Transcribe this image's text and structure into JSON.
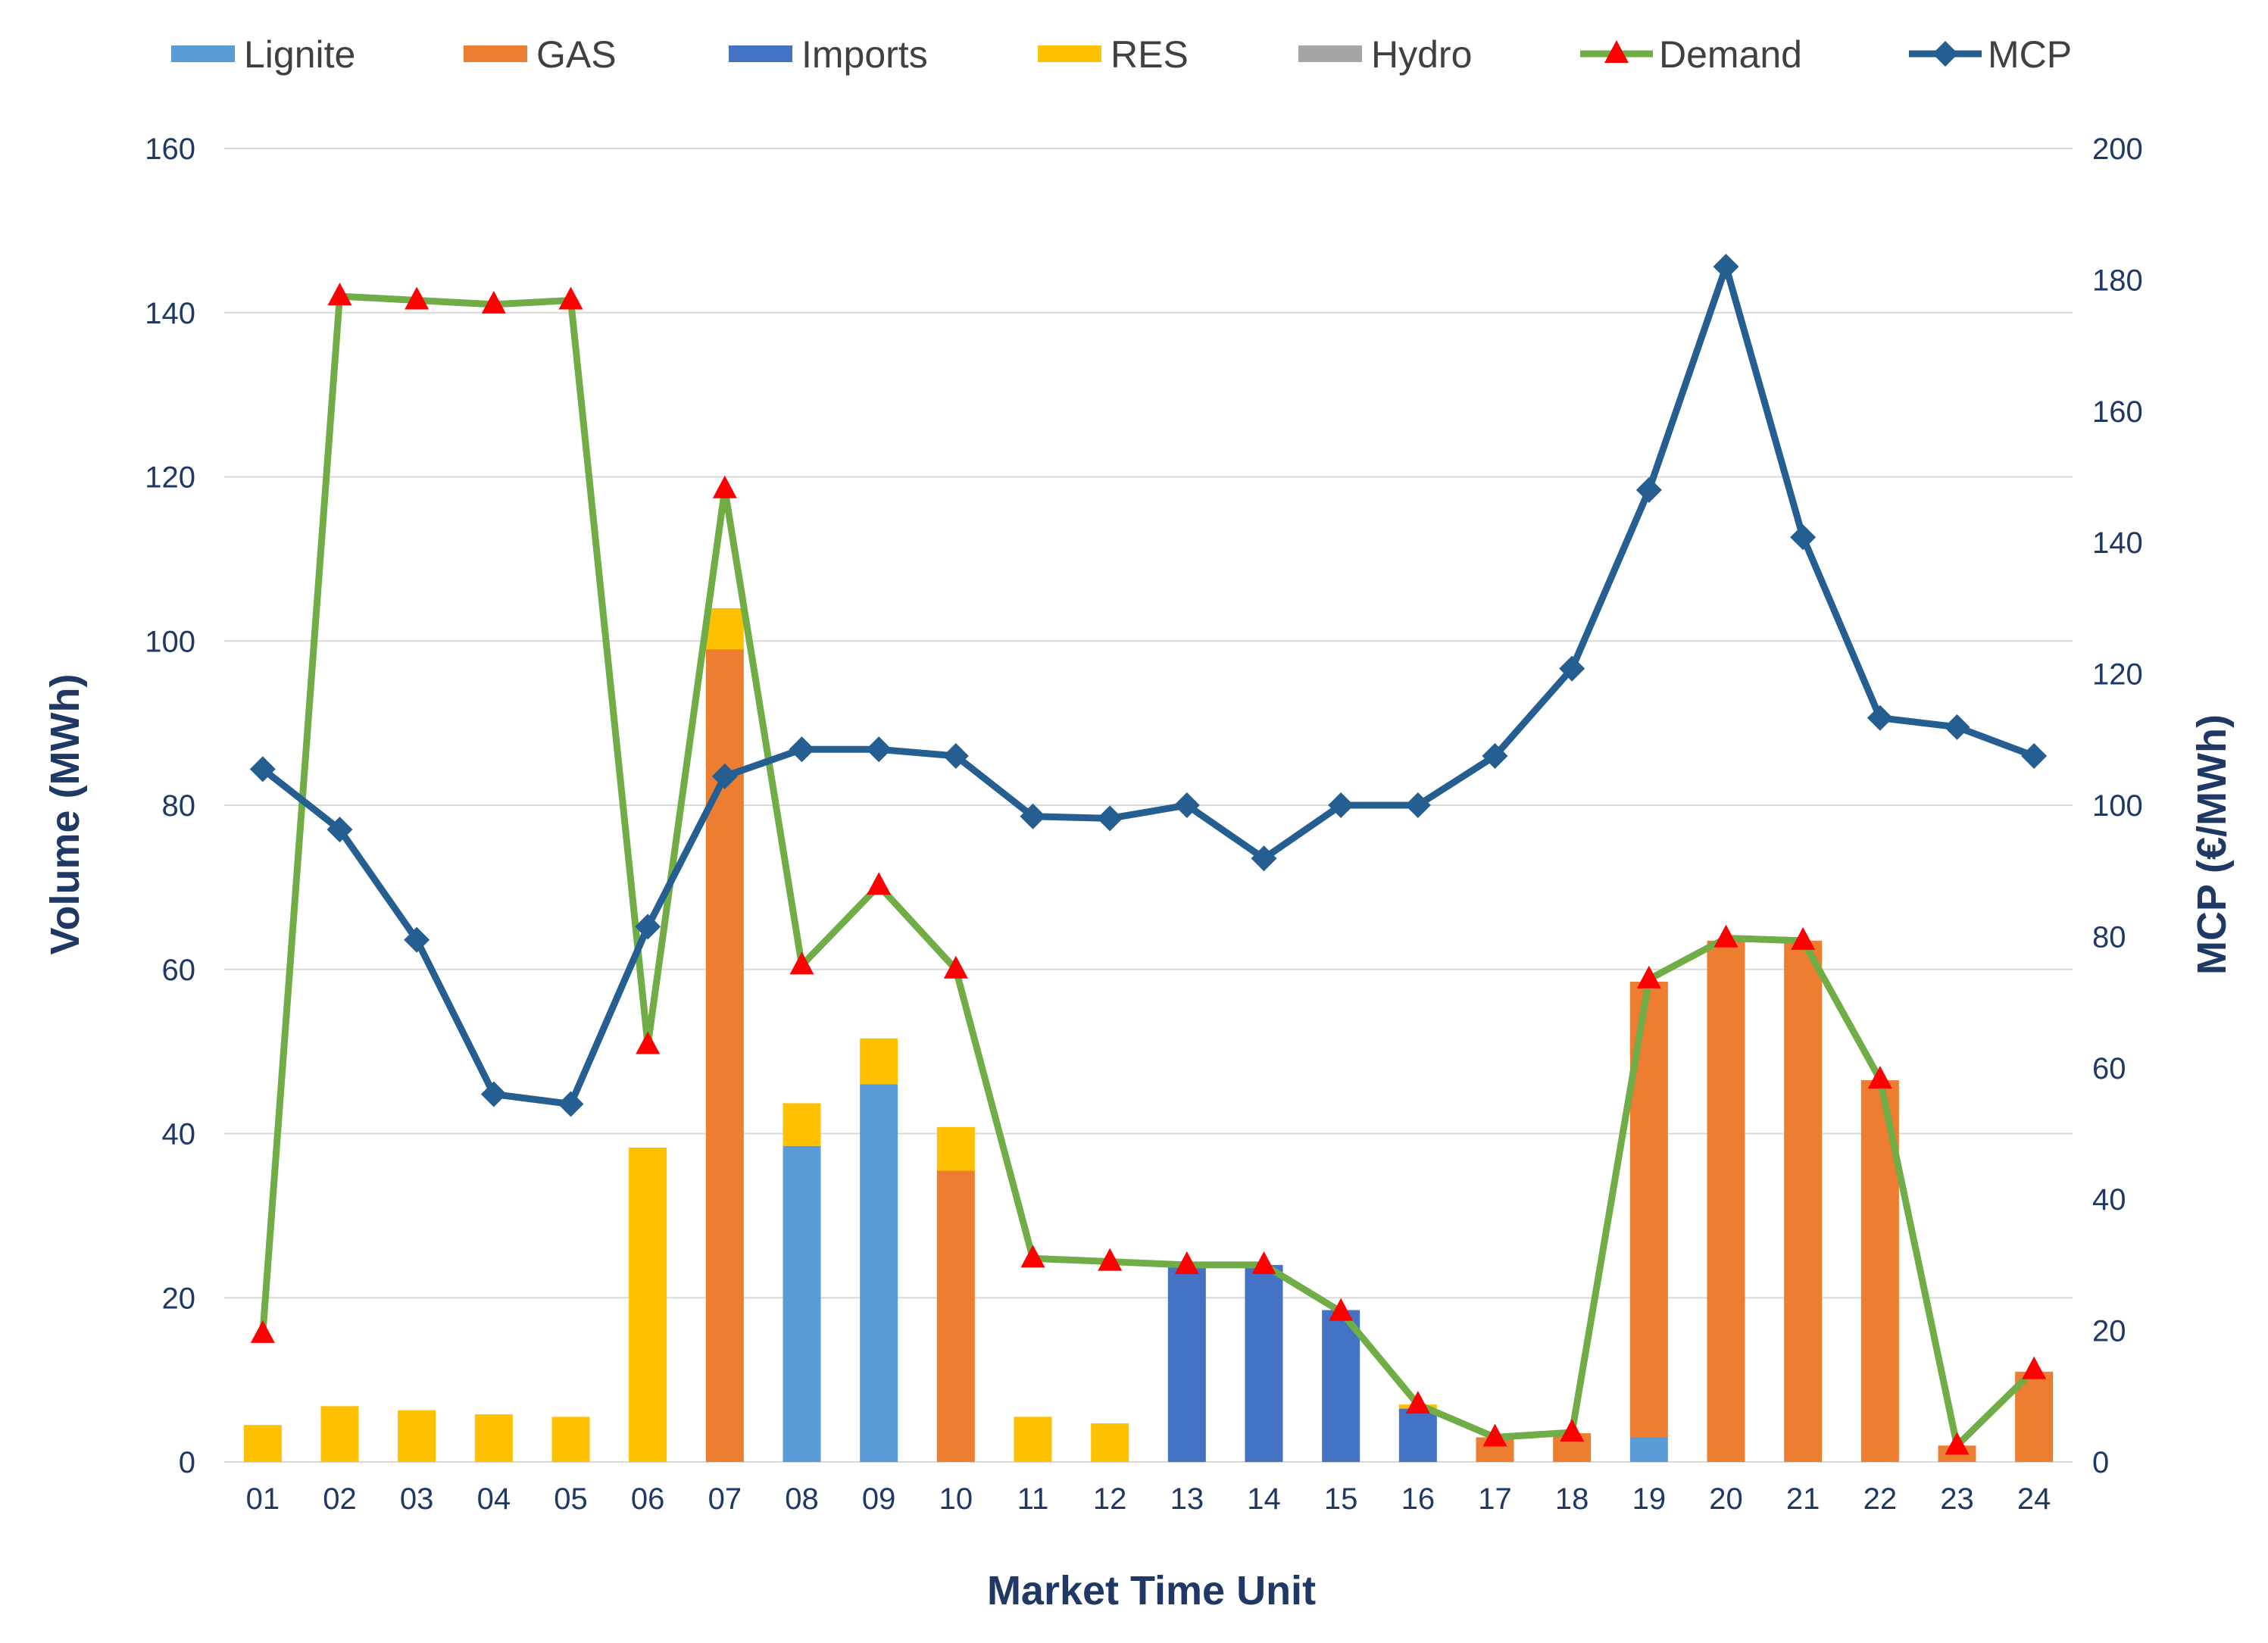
{
  "chart_data": {
    "type": "bar",
    "stacked": true,
    "title": "",
    "xlabel": "Market Time Unit",
    "ylabel_left": "Volume (MWh)",
    "ylabel_right": "MCP (€/MWh)",
    "ylim_left": [
      0,
      160
    ],
    "ylim_right": [
      0,
      200
    ],
    "yticks_left": [
      "0",
      "20",
      "40",
      "60",
      "80",
      "100",
      "120",
      "140",
      "160"
    ],
    "yticks_right": [
      "0",
      "20",
      "40",
      "60",
      "80",
      "100",
      "120",
      "140",
      "160",
      "180",
      "200"
    ],
    "grid": true,
    "legend_position": "top",
    "categories": [
      "01",
      "02",
      "03",
      "04",
      "05",
      "06",
      "07",
      "08",
      "09",
      "10",
      "11",
      "12",
      "13",
      "14",
      "15",
      "16",
      "17",
      "18",
      "19",
      "20",
      "21",
      "22",
      "23",
      "24"
    ],
    "bar_series": [
      {
        "name": "Lignite",
        "color": "#5b9bd5",
        "values": [
          0,
          0,
          0,
          0,
          0,
          0,
          0,
          38.5,
          46,
          0,
          0,
          0,
          0,
          0,
          0,
          0,
          0,
          0,
          3,
          0,
          0,
          0,
          0,
          0
        ]
      },
      {
        "name": "GAS",
        "color": "#ed7d31",
        "values": [
          0,
          0,
          0,
          0,
          0,
          0,
          99,
          0,
          0,
          35.5,
          0,
          0,
          0,
          0,
          0,
          0,
          3,
          3.5,
          55.5,
          63.5,
          63.5,
          46.5,
          2,
          11
        ]
      },
      {
        "name": "Imports",
        "color": "#4472c4",
        "values": [
          0,
          0,
          0,
          0,
          0,
          0,
          0,
          0,
          0,
          0,
          0,
          0,
          24,
          24,
          18.5,
          6.5,
          0,
          0,
          0,
          0,
          0,
          0,
          0,
          0
        ]
      },
      {
        "name": "RES",
        "color": "#ffc000",
        "values": [
          4.5,
          6.8,
          6.3,
          5.8,
          5.5,
          38.3,
          5,
          5.2,
          5.6,
          5.3,
          5.5,
          4.7,
          0,
          0,
          0,
          0.5,
          0,
          0,
          0,
          0,
          0,
          0,
          0,
          0
        ]
      },
      {
        "name": "Hydro",
        "color": "#a5a5a5",
        "values": [
          0,
          0,
          0,
          0,
          0,
          0,
          0,
          0,
          0,
          0,
          0,
          0,
          0,
          0,
          0,
          0,
          0,
          0,
          0,
          0,
          0,
          0,
          0,
          0
        ]
      }
    ],
    "line_series": [
      {
        "name": "Demand",
        "color": "#70ad47",
        "marker_color": "#ff0000",
        "marker": "triangle",
        "axis": "left",
        "values": [
          15.6,
          142,
          141.5,
          141,
          141.5,
          50.8,
          118.5,
          60.5,
          70.2,
          60,
          24.8,
          24.4,
          24,
          24,
          18.3,
          7,
          3,
          3.6,
          58.8,
          63.8,
          63.5,
          46.6,
          2,
          11.2
        ]
      },
      {
        "name": "MCP",
        "color": "#255e91",
        "marker": "diamond",
        "axis": "right",
        "values": [
          105.5,
          96.3,
          79.5,
          56,
          54.5,
          81.5,
          104.4,
          108.5,
          108.5,
          107.5,
          98.3,
          98,
          100,
          91.9,
          100,
          100,
          107.5,
          120.8,
          148,
          182,
          140.8,
          113.3,
          111.9,
          107.5
        ]
      }
    ]
  }
}
